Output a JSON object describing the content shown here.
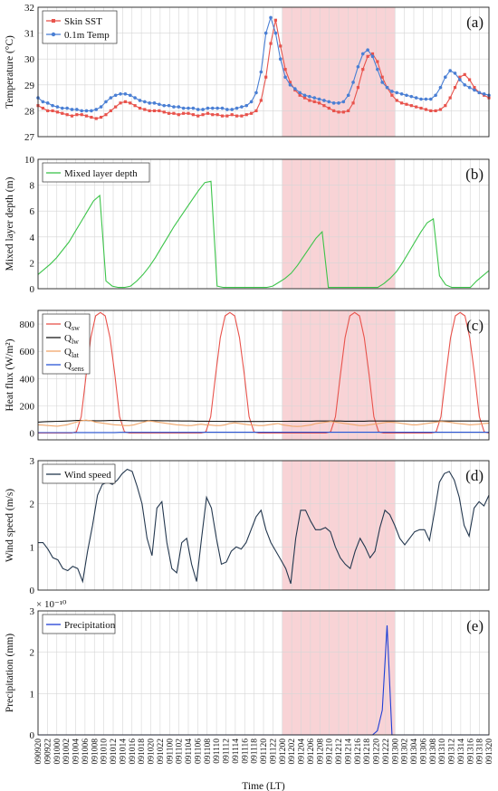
{
  "chart_data": [
    {
      "id": "a",
      "type": "line",
      "panel_label": "(a)",
      "ylabel": "Temperature (°C)",
      "ylim": [
        27,
        32
      ],
      "yticks": [
        27,
        28,
        29,
        30,
        31,
        32
      ],
      "legend": [
        "Skin SST",
        "0.1m Temp"
      ],
      "series": [
        {
          "name": "Skin SST",
          "color": "#e8534c",
          "marker": "square",
          "values": [
            28.2,
            28.1,
            28.0,
            28.0,
            27.95,
            27.9,
            27.85,
            27.8,
            27.85,
            27.85,
            27.8,
            27.75,
            27.7,
            27.75,
            27.85,
            28.0,
            28.15,
            28.3,
            28.35,
            28.3,
            28.2,
            28.1,
            28.05,
            28.0,
            28.0,
            28.0,
            27.95,
            27.9,
            27.9,
            27.85,
            27.9,
            27.9,
            27.85,
            27.8,
            27.85,
            27.9,
            27.85,
            27.85,
            27.8,
            27.8,
            27.85,
            27.8,
            27.8,
            27.85,
            27.9,
            28.0,
            28.4,
            29.3,
            30.6,
            31.5,
            30.5,
            29.6,
            29.1,
            28.8,
            28.6,
            28.5,
            28.4,
            28.35,
            28.3,
            28.2,
            28.1,
            28.0,
            27.95,
            27.95,
            28.0,
            28.3,
            28.9,
            29.6,
            30.1,
            30.2,
            29.9,
            29.3,
            28.9,
            28.6,
            28.4,
            28.3,
            28.25,
            28.2,
            28.15,
            28.1,
            28.05,
            28.0,
            28.0,
            28.05,
            28.2,
            28.5,
            28.9,
            29.3,
            29.4,
            29.2,
            28.9,
            28.7,
            28.6,
            28.5
          ]
        },
        {
          "name": "0.1m Temp",
          "color": "#4a7fd4",
          "marker": "circle",
          "values": [
            28.5,
            28.35,
            28.3,
            28.2,
            28.15,
            28.1,
            28.1,
            28.05,
            28.05,
            28.0,
            28.0,
            28.0,
            28.05,
            28.15,
            28.35,
            28.5,
            28.6,
            28.65,
            28.65,
            28.6,
            28.5,
            28.4,
            28.35,
            28.3,
            28.3,
            28.25,
            28.2,
            28.2,
            28.15,
            28.15,
            28.1,
            28.1,
            28.1,
            28.05,
            28.05,
            28.1,
            28.1,
            28.1,
            28.1,
            28.05,
            28.05,
            28.1,
            28.15,
            28.2,
            28.35,
            28.7,
            29.5,
            31.0,
            31.6,
            31.0,
            30.0,
            29.3,
            29.0,
            28.85,
            28.7,
            28.6,
            28.55,
            28.5,
            28.45,
            28.4,
            28.35,
            28.3,
            28.3,
            28.35,
            28.6,
            29.1,
            29.7,
            30.2,
            30.35,
            30.1,
            29.6,
            29.1,
            28.9,
            28.75,
            28.7,
            28.65,
            28.6,
            28.55,
            28.5,
            28.45,
            28.45,
            28.45,
            28.6,
            28.9,
            29.3,
            29.55,
            29.45,
            29.2,
            29.0,
            28.9,
            28.8,
            28.7,
            28.65,
            28.6
          ]
        }
      ]
    },
    {
      "id": "b",
      "type": "line",
      "panel_label": "(b)",
      "ylabel": "Mixed layer depth (m)",
      "ylim": [
        0,
        10
      ],
      "yticks": [
        0,
        2,
        4,
        6,
        8,
        10
      ],
      "legend": [
        "Mixed layer depth"
      ],
      "series": [
        {
          "name": "Mixed layer depth",
          "color": "#3cc44a",
          "values": [
            1.1,
            1.5,
            1.9,
            2.4,
            3.0,
            3.6,
            4.4,
            5.2,
            6.0,
            6.8,
            7.2,
            0.6,
            0.2,
            0.1,
            0.1,
            0.2,
            0.6,
            1.1,
            1.7,
            2.4,
            3.2,
            4.0,
            4.8,
            5.5,
            6.2,
            6.9,
            7.6,
            8.2,
            8.3,
            0.2,
            0.1,
            0.1,
            0.1,
            0.1,
            0.1,
            0.1,
            0.1,
            0.1,
            0.2,
            0.5,
            0.8,
            1.2,
            1.8,
            2.5,
            3.2,
            3.9,
            4.4,
            0.1,
            0.1,
            0.1,
            0.1,
            0.1,
            0.1,
            0.1,
            0.1,
            0.1,
            0.4,
            0.8,
            1.3,
            2.0,
            2.8,
            3.6,
            4.4,
            5.1,
            5.4,
            1.0,
            0.3,
            0.1,
            0.1,
            0.1,
            0.1,
            0.6,
            1.0,
            1.4
          ]
        }
      ]
    },
    {
      "id": "c",
      "type": "line",
      "panel_label": "(c)",
      "ylabel": "Heat flux (W/m²)",
      "ylim": [
        -50,
        900
      ],
      "yticks": [
        0,
        200,
        400,
        600,
        800
      ],
      "legend": [
        "Q_sw",
        "Q_lw",
        "Q_lat",
        "Q_sens"
      ],
      "series": [
        {
          "name": "Q_sw",
          "color": "#e8534c",
          "values": [
            0,
            0,
            0,
            0,
            0,
            0,
            0,
            0,
            10,
            120,
            420,
            700,
            860,
            885,
            860,
            700,
            430,
            120,
            10,
            0,
            0,
            0,
            0,
            0,
            0,
            0,
            0,
            0,
            0,
            0,
            0,
            0,
            0,
            0,
            0,
            10,
            120,
            420,
            700,
            860,
            885,
            860,
            700,
            430,
            120,
            10,
            0,
            0,
            0,
            0,
            0,
            0,
            0,
            0,
            0,
            0,
            0,
            0,
            0,
            0,
            0,
            10,
            120,
            420,
            700,
            860,
            885,
            860,
            700,
            430,
            120,
            10,
            0,
            0,
            0,
            0,
            0,
            0,
            0,
            0,
            0,
            0,
            0,
            10,
            120,
            420,
            700,
            860,
            885,
            860,
            700,
            430,
            120,
            10,
            0
          ]
        },
        {
          "name": "Q_lw",
          "color": "#1a1a1a",
          "values": [
            80,
            82,
            84,
            85,
            86,
            87,
            88,
            90,
            92,
            93,
            92,
            91,
            90,
            90,
            91,
            92,
            92,
            93,
            92,
            91,
            90,
            90,
            90,
            91,
            91,
            91,
            90,
            90,
            89,
            89,
            88,
            88,
            88,
            87,
            87,
            87,
            86,
            86,
            86,
            86,
            85,
            85,
            85,
            85,
            85,
            85,
            85,
            85,
            86,
            86,
            86,
            86,
            86,
            87,
            87,
            87,
            87,
            87,
            88,
            88,
            88,
            88,
            88,
            88,
            87,
            87,
            87,
            87,
            87,
            88,
            88,
            88,
            88,
            88,
            88,
            88,
            88,
            88,
            88,
            88,
            88,
            88,
            88,
            88,
            88,
            88,
            88,
            88,
            88,
            88,
            88,
            88,
            88,
            88,
            88
          ]
        },
        {
          "name": "Q_lat",
          "color": "#f0a66a",
          "values": [
            60,
            58,
            55,
            52,
            50,
            55,
            60,
            70,
            80,
            90,
            95,
            90,
            80,
            75,
            70,
            65,
            60,
            58,
            55,
            55,
            60,
            70,
            80,
            88,
            85,
            80,
            75,
            70,
            65,
            60,
            58,
            55,
            55,
            60,
            65,
            60,
            58,
            55,
            55,
            60,
            70,
            75,
            70,
            65,
            60,
            58,
            55,
            55,
            60,
            65,
            70,
            60,
            55,
            50,
            48,
            50,
            55,
            60,
            70,
            75,
            80,
            85,
            80,
            75,
            70,
            65,
            60,
            55,
            55,
            60,
            65,
            70,
            75,
            80,
            78,
            75,
            70,
            65,
            60,
            60,
            65,
            70,
            75,
            80,
            85,
            82,
            78,
            72,
            68,
            65,
            60,
            62,
            65,
            70,
            72
          ]
        },
        {
          "name": "Q_sens",
          "color": "#2a56d6",
          "values": [
            3,
            3,
            3,
            3,
            3,
            3,
            3,
            3,
            4,
            4,
            4,
            4,
            4,
            4,
            4,
            4,
            4,
            5,
            5,
            5,
            5,
            5,
            5,
            5,
            5,
            5,
            5,
            5,
            5,
            5,
            5,
            5,
            5,
            5,
            5,
            6,
            6,
            6,
            6,
            6,
            6,
            6,
            6,
            6,
            6,
            6,
            6,
            6,
            6,
            6,
            6,
            6,
            6,
            6,
            6,
            6,
            6,
            6,
            6,
            6,
            6,
            6,
            6,
            6,
            6,
            6,
            6,
            6,
            6,
            6,
            6,
            6,
            6,
            6,
            6,
            6,
            6,
            6,
            6,
            6,
            6,
            6,
            6,
            6,
            6,
            6,
            6,
            6,
            6,
            6,
            6,
            6,
            6,
            6,
            6
          ]
        }
      ],
      "legend_labels": [
        {
          "base": "Q",
          "sub": "sw"
        },
        {
          "base": "Q",
          "sub": "lw"
        },
        {
          "base": "Q",
          "sub": "lat"
        },
        {
          "base": "Q",
          "sub": "sens"
        }
      ]
    },
    {
      "id": "d",
      "type": "line",
      "panel_label": "(d)",
      "ylabel": "Wind speed (m/s)",
      "ylim": [
        0,
        3
      ],
      "yticks": [
        0,
        1,
        2,
        3
      ],
      "legend": [
        "Wind speed"
      ],
      "series": [
        {
          "name": "Wind speed",
          "color": "#24384f",
          "values": [
            1.1,
            1.1,
            0.95,
            0.75,
            0.7,
            0.5,
            0.45,
            0.55,
            0.5,
            0.2,
            0.9,
            1.5,
            2.2,
            2.45,
            2.5,
            2.45,
            2.55,
            2.7,
            2.8,
            2.75,
            2.4,
            2.0,
            1.2,
            0.8,
            1.9,
            2.05,
            1.1,
            0.5,
            0.4,
            1.1,
            1.2,
            0.6,
            0.2,
            1.2,
            2.15,
            1.9,
            1.2,
            0.6,
            0.65,
            0.9,
            1.0,
            0.95,
            1.1,
            1.4,
            1.7,
            1.85,
            1.4,
            1.1,
            0.9,
            0.7,
            0.5,
            0.15,
            1.2,
            1.85,
            1.85,
            1.6,
            1.4,
            1.4,
            1.45,
            1.35,
            1.0,
            0.75,
            0.6,
            0.5,
            0.9,
            1.2,
            1.0,
            0.75,
            0.9,
            1.45,
            1.85,
            1.75,
            1.5,
            1.2,
            1.05,
            1.2,
            1.35,
            1.4,
            1.4,
            1.15,
            1.8,
            2.5,
            2.7,
            2.75,
            2.55,
            2.15,
            1.5,
            1.25,
            1.9,
            2.05,
            1.95,
            2.2
          ]
        }
      ]
    },
    {
      "id": "e",
      "type": "line",
      "panel_label": "(e)",
      "ylabel": "Precipitation (mm)",
      "ylim": [
        0,
        3
      ],
      "yscale_label": "× 10⁻¹⁰",
      "yticks": [
        0,
        1,
        2,
        3
      ],
      "legend": [
        "Precipitation"
      ],
      "series": [
        {
          "name": "Precipitation",
          "color": "#1f3fd6",
          "values": [
            0,
            0,
            0,
            0,
            0,
            0,
            0,
            0,
            0,
            0,
            0,
            0,
            0,
            0,
            0,
            0,
            0,
            0,
            0,
            0,
            0,
            0,
            0,
            0,
            0,
            0,
            0,
            0,
            0,
            0,
            0,
            0,
            0,
            0,
            0,
            0,
            0,
            0,
            0,
            0,
            0,
            0,
            0,
            0,
            0,
            0,
            0,
            0,
            0,
            0,
            0,
            0,
            0,
            0,
            0,
            0,
            0,
            0,
            0,
            0,
            0,
            0,
            0,
            0,
            0,
            0,
            0,
            0,
            0,
            0,
            0.1,
            0.6,
            2.65,
            0,
            0,
            0,
            0,
            0,
            0,
            0,
            0,
            0,
            0,
            0,
            0,
            0,
            0,
            0,
            0,
            0,
            0,
            0,
            0,
            0
          ]
        }
      ]
    }
  ],
  "shaded_region": {
    "from": "091200",
    "to": "091300",
    "color": "#f8d3d6"
  },
  "xaxis": {
    "label": "Time (LT)",
    "ticks": [
      "090920",
      "090922",
      "091000",
      "091002",
      "091004",
      "091006",
      "091008",
      "091010",
      "091012",
      "091014",
      "091016",
      "091018",
      "091020",
      "091022",
      "091100",
      "091102",
      "091104",
      "091106",
      "091108",
      "091110",
      "091112",
      "091114",
      "091116",
      "091118",
      "091120",
      "091122",
      "091200",
      "091202",
      "091204",
      "091206",
      "091208",
      "091210",
      "091212",
      "091214",
      "091216",
      "091218",
      "091220",
      "091222",
      "091300",
      "091302",
      "091304",
      "091306",
      "091308",
      "091310",
      "091312",
      "091314",
      "091316",
      "091318",
      "091320"
    ]
  }
}
